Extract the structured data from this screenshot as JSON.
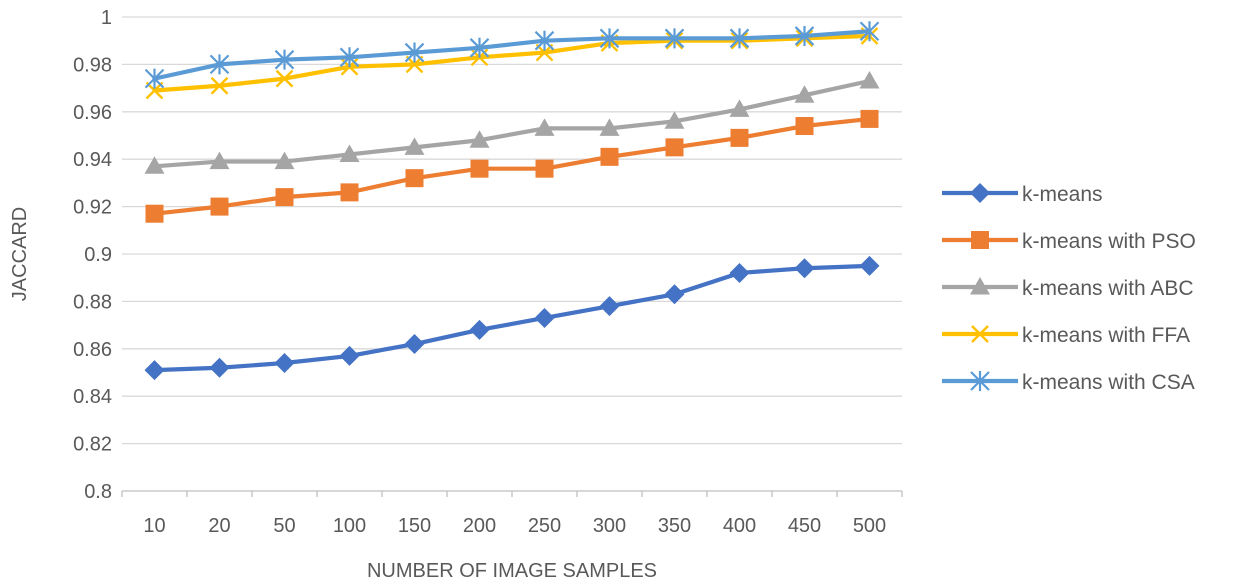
{
  "chart_data": {
    "type": "line",
    "title": "",
    "xlabel": "NUMBER OF IMAGE SAMPLES",
    "ylabel": "JACCARD",
    "categories": [
      "10",
      "20",
      "50",
      "100",
      "150",
      "200",
      "250",
      "300",
      "350",
      "400",
      "450",
      "500"
    ],
    "ylim": [
      0.8,
      1.0
    ],
    "y_ticks": [
      "0.8",
      "0.82",
      "0.84",
      "0.86",
      "0.88",
      "0.9",
      "0.92",
      "0.94",
      "0.96",
      "0.98",
      "1"
    ],
    "y_tick_values": [
      0.8,
      0.82,
      0.84,
      0.86,
      0.88,
      0.9,
      0.92,
      0.94,
      0.96,
      0.98,
      1.0
    ],
    "grid": true,
    "legend_position": "right",
    "series": [
      {
        "name": "k-means",
        "color": "#4472C4",
        "marker": "diamond",
        "values": [
          0.851,
          0.852,
          0.854,
          0.857,
          0.862,
          0.868,
          0.873,
          0.878,
          0.883,
          0.892,
          0.894,
          0.895
        ]
      },
      {
        "name": "k-means with PSO",
        "color": "#ED7D31",
        "marker": "square",
        "values": [
          0.917,
          0.92,
          0.924,
          0.926,
          0.932,
          0.936,
          0.936,
          0.941,
          0.945,
          0.949,
          0.954,
          0.957
        ]
      },
      {
        "name": "k-means with ABC",
        "color": "#A5A5A5",
        "marker": "triangle",
        "values": [
          0.937,
          0.939,
          0.939,
          0.942,
          0.945,
          0.948,
          0.953,
          0.953,
          0.956,
          0.961,
          0.967,
          0.973
        ]
      },
      {
        "name": "k-means with FFA",
        "color": "#FFC000",
        "marker": "x",
        "values": [
          0.969,
          0.971,
          0.974,
          0.979,
          0.98,
          0.983,
          0.985,
          0.989,
          0.99,
          0.99,
          0.991,
          0.992
        ]
      },
      {
        "name": "k-means with CSA",
        "color": "#5B9BD5",
        "marker": "star",
        "values": [
          0.974,
          0.98,
          0.982,
          0.983,
          0.985,
          0.987,
          0.99,
          0.991,
          0.991,
          0.991,
          0.992,
          0.994
        ]
      }
    ]
  }
}
